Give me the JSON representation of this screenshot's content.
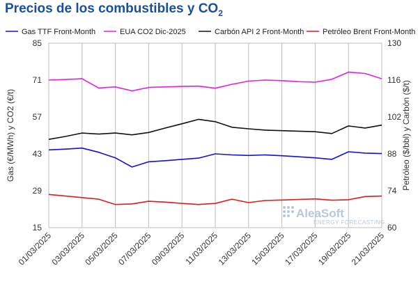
{
  "title": {
    "main": "Precios de los combustibles y CO",
    "subscript": "2"
  },
  "watermark": {
    "brand": "AleaSoft",
    "tagline": "ENERGY FORECASTING"
  },
  "chart_data": {
    "type": "line",
    "x": [
      "01/03/2025",
      "02/03/2025",
      "03/03/2025",
      "04/03/2025",
      "05/03/2025",
      "06/03/2025",
      "07/03/2025",
      "08/03/2025",
      "09/03/2025",
      "10/03/2025",
      "11/03/2025",
      "12/03/2025",
      "13/03/2025",
      "14/03/2025",
      "15/03/2025",
      "16/03/2025",
      "17/03/2025",
      "18/03/2025",
      "19/03/2025",
      "20/03/2025",
      "21/03/2025"
    ],
    "x_tick_labels": [
      "01/03/2025",
      "03/03/2025",
      "05/03/2025",
      "07/03/2025",
      "09/03/2025",
      "11/03/2025",
      "13/03/2025",
      "15/03/2025",
      "17/03/2025",
      "19/03/2025",
      "21/03/2025"
    ],
    "ylabel_left": "Gas (€/MWh) y CO2 (€/t)",
    "ylabel_right": "Petróleo ($/bbl) y Carbón ($/t)",
    "ylim_left": [
      15,
      85
    ],
    "yticks_left": [
      15,
      29,
      43,
      57,
      71,
      85
    ],
    "ylim_right": [
      60,
      130
    ],
    "yticks_right": [
      60,
      74,
      88,
      102,
      116,
      130
    ],
    "grid": "vertical",
    "legend_position": "top",
    "series": [
      {
        "name": "Gas TTF Front-Month",
        "axis": "left",
        "color": "#1010e0",
        "values": [
          44.5,
          44.8,
          45.2,
          43.6,
          41.5,
          38.0,
          40.0,
          40.4,
          40.9,
          41.4,
          43.0,
          42.6,
          42.4,
          42.6,
          42.3,
          41.9,
          41.5,
          40.9,
          43.8,
          43.3,
          43.1
        ]
      },
      {
        "name": "EUA CO2 Dic-2025",
        "axis": "left",
        "color": "#e81ce8",
        "values": [
          71.0,
          71.2,
          71.5,
          68.0,
          68.4,
          66.9,
          68.2,
          68.4,
          68.6,
          68.7,
          67.9,
          69.4,
          70.6,
          71.0,
          70.8,
          70.4,
          70.2,
          71.3,
          74.0,
          73.5,
          71.5
        ]
      },
      {
        "name": "Carbón API 2 Front-Month",
        "axis": "right",
        "color": "#111111",
        "values": [
          93.5,
          94.6,
          95.9,
          95.5,
          95.9,
          95.2,
          96.1,
          97.8,
          99.4,
          101.1,
          100.2,
          98.1,
          97.5,
          97.0,
          96.8,
          96.6,
          96.4,
          95.7,
          98.6,
          97.8,
          98.9
        ]
      },
      {
        "name": "Petróleo Brent Front-Month",
        "axis": "right",
        "color": "#e01a1a",
        "values": [
          72.6,
          72.0,
          71.4,
          70.8,
          68.8,
          69.0,
          70.0,
          69.7,
          69.2,
          68.8,
          69.2,
          70.8,
          69.5,
          70.3,
          70.5,
          70.7,
          70.9,
          70.4,
          70.6,
          71.8,
          72.0
        ]
      }
    ]
  }
}
